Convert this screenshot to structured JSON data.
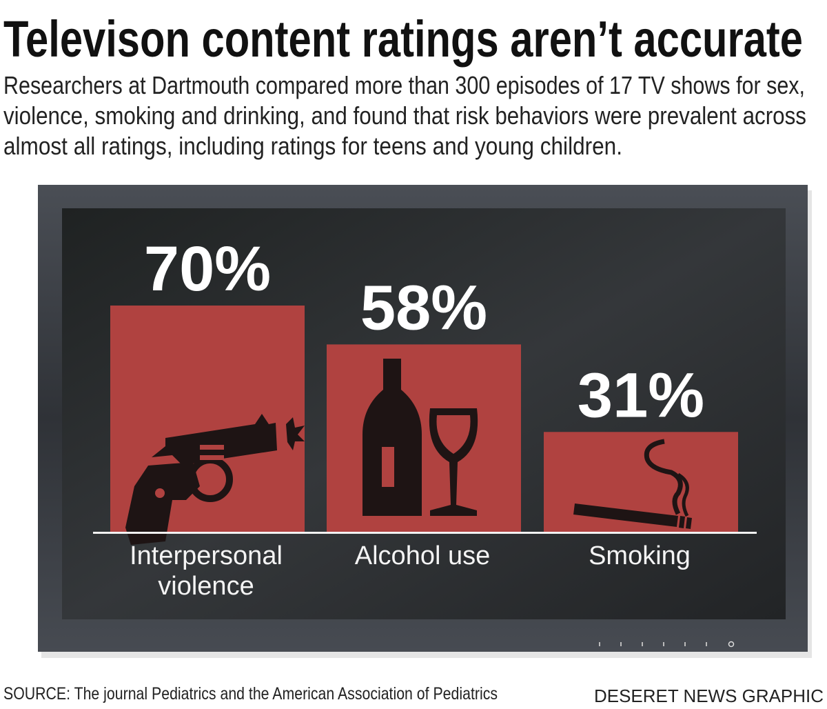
{
  "title": "Televison content ratings aren’t accurate",
  "subtitle_lines": [
    "Researchers at Dartmouth compared more than 300 episodes of 17 TV shows for sex,",
    "violence, smoking and drinking, and found that risk behaviors were prevalent across",
    "almost all ratings, including ratings for teens and young children."
  ],
  "source": "SOURCE: The journal Pediatrics and the American Association of Pediatrics",
  "credit": "DESERET NEWS GRAPHIC",
  "colors": {
    "bar": "#b04240",
    "icon": "#1e1414",
    "screen": "#2a2c2e",
    "frame": "#3a3d42",
    "text_on_screen": "#ffffff"
  },
  "chart_data": {
    "type": "bar",
    "title": "",
    "categories": [
      "Interpersonal violence",
      "Alcohol use",
      "Smoking"
    ],
    "category_label_lines": [
      [
        "Interpersonal",
        "violence"
      ],
      [
        "Alcohol use"
      ],
      [
        "Smoking"
      ]
    ],
    "values": [
      70,
      58,
      31
    ],
    "data_labels": [
      "70%",
      "58%",
      "31%"
    ],
    "icons": [
      "revolver-icon",
      "wine-bottle-glass-icon",
      "cigarette-icon"
    ],
    "unit": "%",
    "ylim": [
      0,
      100
    ],
    "grid": false,
    "legend": "none"
  }
}
